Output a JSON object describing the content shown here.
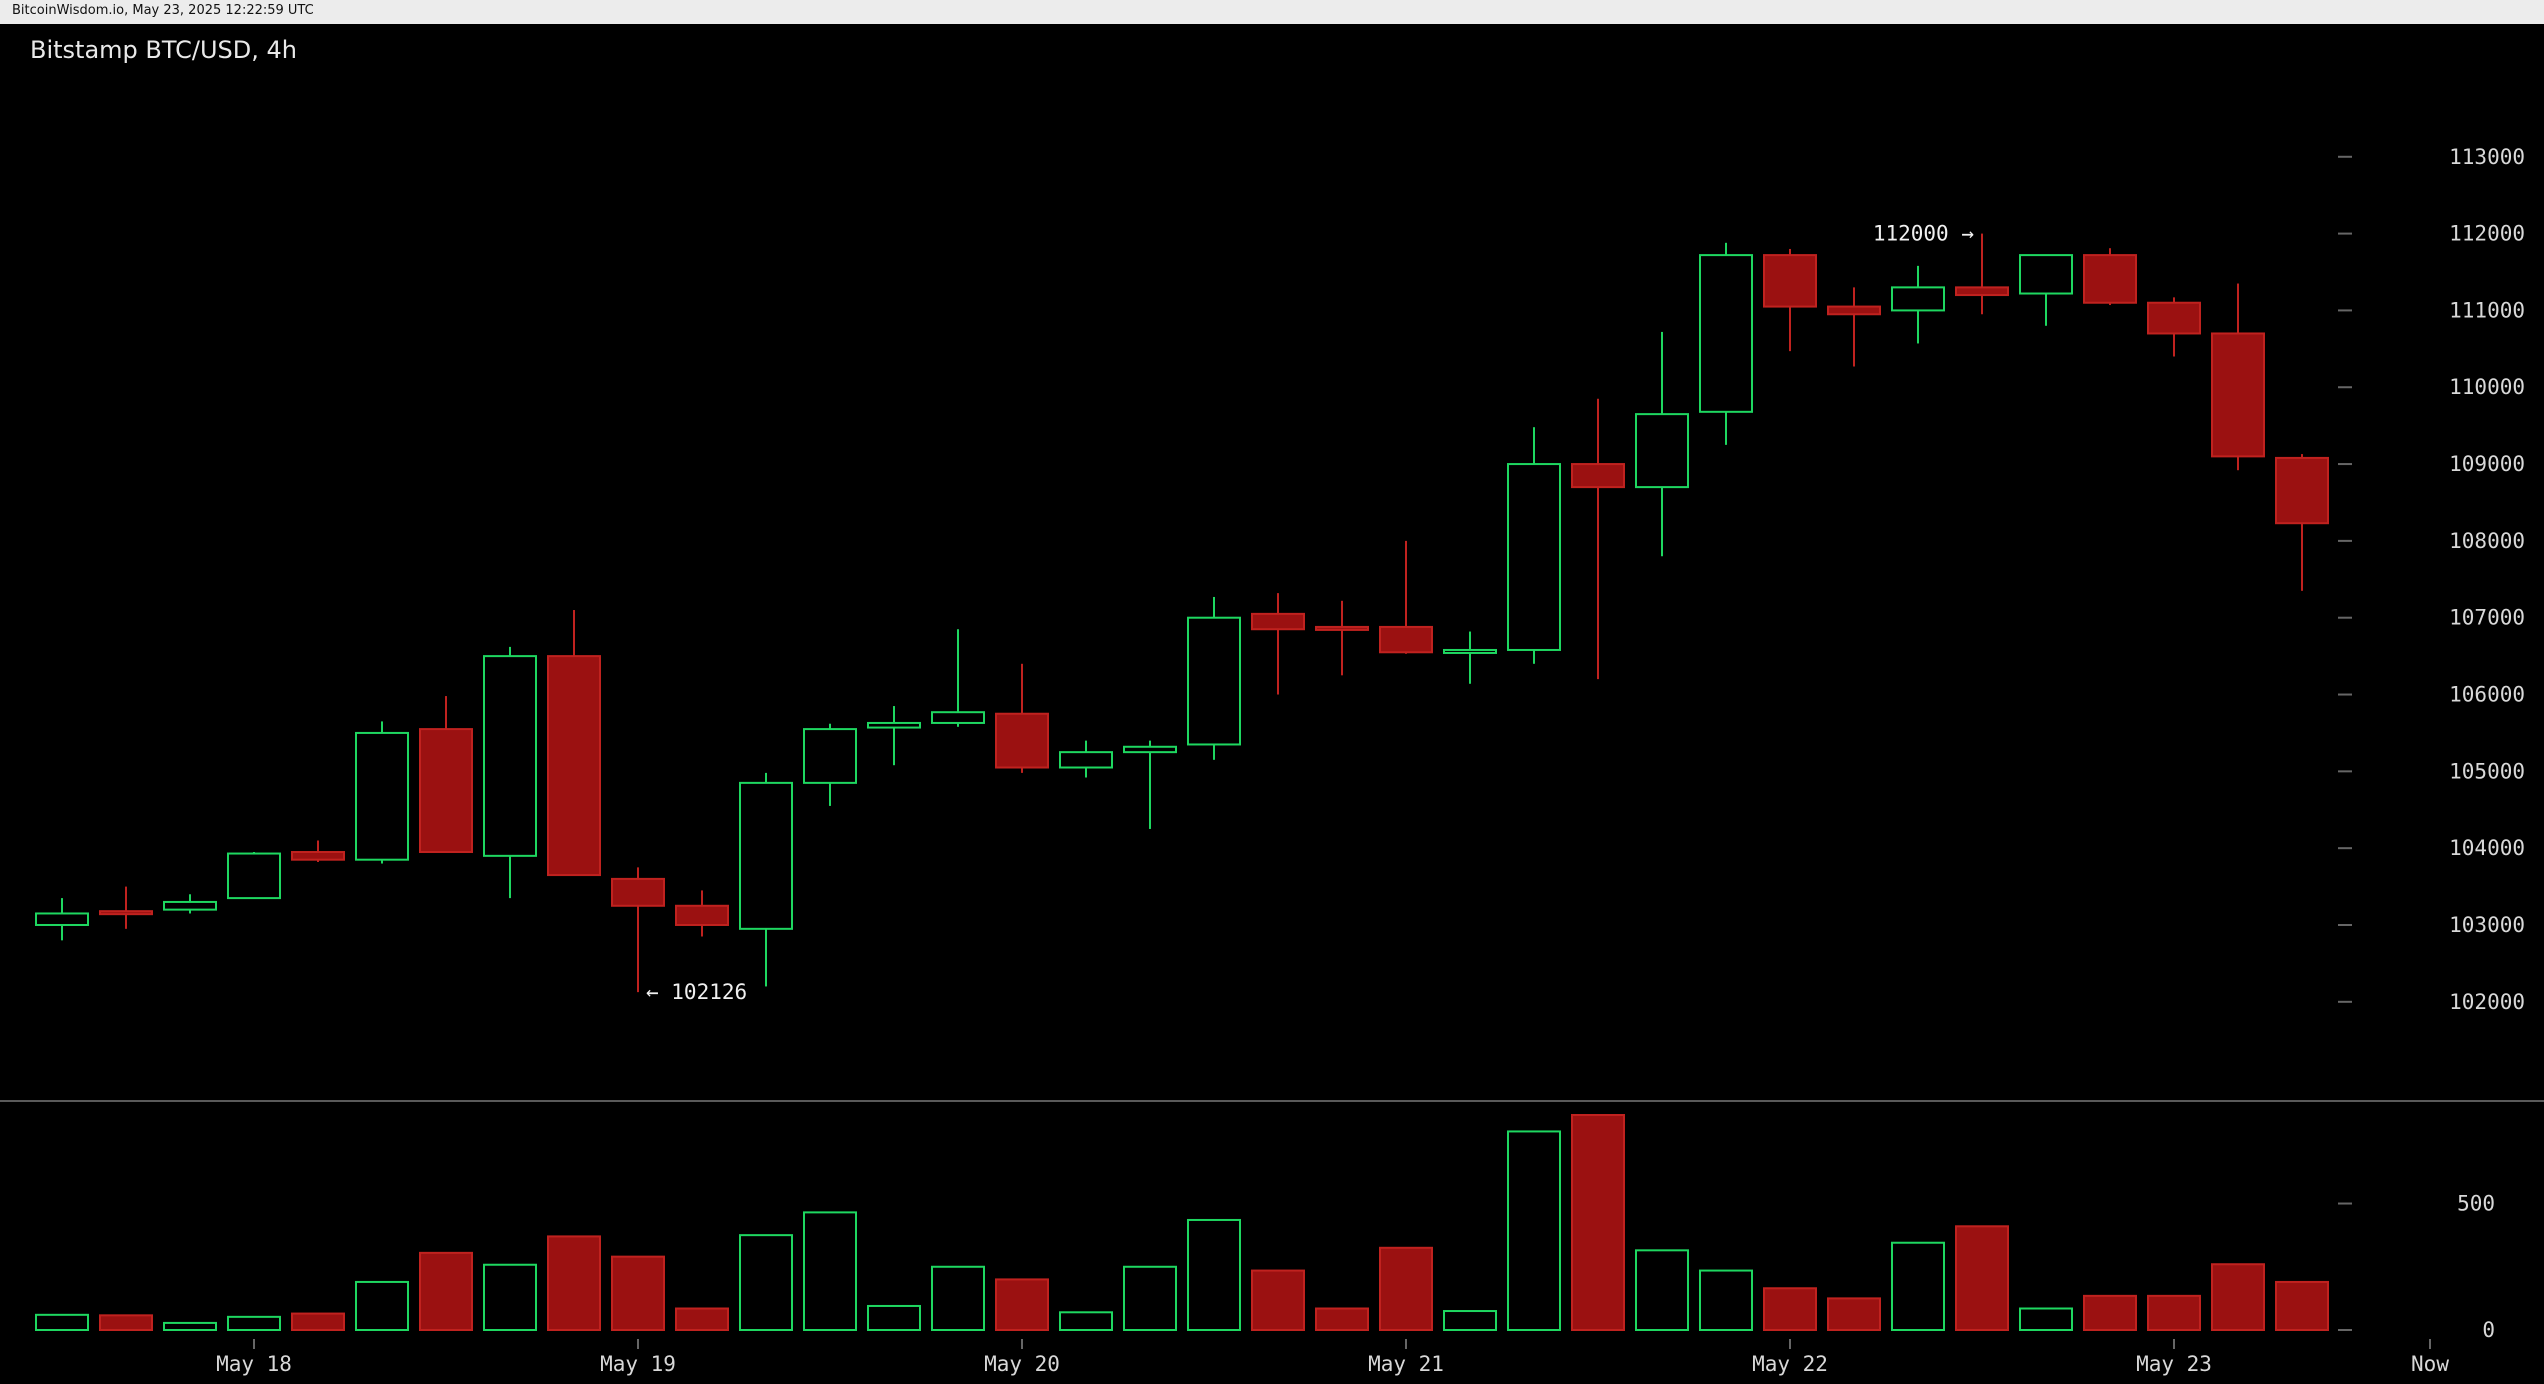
{
  "header": {
    "source_text": "BitcoinWisdom.io, May 23, 2025 12:22:59 UTC",
    "chart_title": "Bitstamp BTC/USD, 4h"
  },
  "theme": {
    "background": "#000000",
    "up_color": "#1ed760",
    "down_color": "#9b1111",
    "down_border": "#c0221f",
    "axis_text": "#d8d8d8",
    "divider": "#5a5a5a"
  },
  "chart_data": [
    {
      "type": "candlestick",
      "title": "Bitstamp BTC/USD, 4h",
      "xlabel": "",
      "ylabel": "",
      "ylim": [
        100800,
        113700
      ],
      "y_ticks": [
        102000,
        103000,
        104000,
        105000,
        106000,
        107000,
        108000,
        109000,
        110000,
        111000,
        112000,
        113000
      ],
      "x_ticks": [
        {
          "label": "May 18",
          "index": 3
        },
        {
          "label": "May 19",
          "index": 9
        },
        {
          "label": "May 20",
          "index": 15
        },
        {
          "label": "May 21",
          "index": 21
        },
        {
          "label": "May 22",
          "index": 27
        },
        {
          "label": "May 23",
          "index": 33
        },
        {
          "label": "Now",
          "index": 37
        }
      ],
      "grid": false,
      "legend": "none",
      "candles": [
        {
          "o": 103000,
          "h": 103350,
          "l": 102800,
          "c": 103150
        },
        {
          "o": 103180,
          "h": 103500,
          "l": 102950,
          "c": 103160
        },
        {
          "o": 103200,
          "h": 103400,
          "l": 103150,
          "c": 103300
        },
        {
          "o": 103350,
          "h": 103950,
          "l": 103350,
          "c": 103930
        },
        {
          "o": 103950,
          "h": 104100,
          "l": 103820,
          "c": 103850
        },
        {
          "o": 103850,
          "h": 105650,
          "l": 103800,
          "c": 105500
        },
        {
          "o": 105550,
          "h": 105980,
          "l": 103950,
          "c": 103950
        },
        {
          "o": 103900,
          "h": 106620,
          "l": 103350,
          "c": 106500
        },
        {
          "o": 106500,
          "h": 107100,
          "l": 103650,
          "c": 103650
        },
        {
          "o": 103600,
          "h": 103750,
          "l": 102126,
          "c": 103250
        },
        {
          "o": 103250,
          "h": 103450,
          "l": 102850,
          "c": 103000
        },
        {
          "o": 102950,
          "h": 104980,
          "l": 102200,
          "c": 104850
        },
        {
          "o": 104850,
          "h": 105620,
          "l": 104550,
          "c": 105550
        },
        {
          "o": 105570,
          "h": 105850,
          "l": 105080,
          "c": 105630
        },
        {
          "o": 105630,
          "h": 106850,
          "l": 105580,
          "c": 105770
        },
        {
          "o": 105750,
          "h": 106400,
          "l": 104980,
          "c": 105050
        },
        {
          "o": 105050,
          "h": 105400,
          "l": 104920,
          "c": 105250
        },
        {
          "o": 105250,
          "h": 105400,
          "l": 104250,
          "c": 105320
        },
        {
          "o": 105350,
          "h": 107270,
          "l": 105150,
          "c": 107000
        },
        {
          "o": 107050,
          "h": 107320,
          "l": 106000,
          "c": 106850
        },
        {
          "o": 106880,
          "h": 107220,
          "l": 106250,
          "c": 106860
        },
        {
          "o": 106880,
          "h": 108000,
          "l": 106530,
          "c": 106550
        },
        {
          "o": 106580,
          "h": 106820,
          "l": 106140,
          "c": 106580
        },
        {
          "o": 106580,
          "h": 109480,
          "l": 106400,
          "c": 109000
        },
        {
          "o": 109000,
          "h": 109850,
          "l": 106200,
          "c": 108700
        },
        {
          "o": 108700,
          "h": 110720,
          "l": 107800,
          "c": 109650
        },
        {
          "o": 109680,
          "h": 111880,
          "l": 109250,
          "c": 111720
        },
        {
          "o": 111720,
          "h": 111800,
          "l": 110470,
          "c": 111050
        },
        {
          "o": 111050,
          "h": 111300,
          "l": 110270,
          "c": 110950
        },
        {
          "o": 111000,
          "h": 111580,
          "l": 110570,
          "c": 111300
        },
        {
          "o": 111300,
          "h": 112000,
          "l": 110950,
          "c": 111200
        },
        {
          "o": 111220,
          "h": 111720,
          "l": 110800,
          "c": 111720
        },
        {
          "o": 111720,
          "h": 111810,
          "l": 111070,
          "c": 111100
        },
        {
          "o": 111100,
          "h": 111170,
          "l": 110400,
          "c": 110700
        },
        {
          "o": 110700,
          "h": 111350,
          "l": 108920,
          "c": 109100
        },
        {
          "o": 109080,
          "h": 109130,
          "l": 107350,
          "c": 108230
        }
      ],
      "annotations": [
        {
          "text": "← 102126",
          "index": 9,
          "value": 102126,
          "side": "right"
        },
        {
          "text": "112000 →",
          "index": 30,
          "value": 112000,
          "side": "left"
        }
      ]
    },
    {
      "type": "bar",
      "title": "",
      "xlabel": "",
      "ylabel": "",
      "ylim": [
        0,
        850
      ],
      "y_ticks": [
        0,
        500
      ],
      "values": [
        60,
        58,
        28,
        52,
        65,
        190,
        305,
        258,
        370,
        290,
        85,
        375,
        465,
        95,
        250,
        200,
        70,
        250,
        435,
        235,
        85,
        325,
        75,
        785,
        850,
        315,
        235,
        165,
        125,
        345,
        410,
        85,
        135,
        135,
        260,
        190
      ],
      "directions": [
        "up",
        "down",
        "up",
        "up",
        "down",
        "up",
        "down",
        "up",
        "down",
        "down",
        "down",
        "up",
        "up",
        "up",
        "up",
        "down",
        "up",
        "up",
        "up",
        "down",
        "down",
        "down",
        "up",
        "up",
        "down",
        "up",
        "up",
        "down",
        "down",
        "up",
        "down",
        "up",
        "down",
        "down",
        "down",
        "down"
      ]
    }
  ]
}
